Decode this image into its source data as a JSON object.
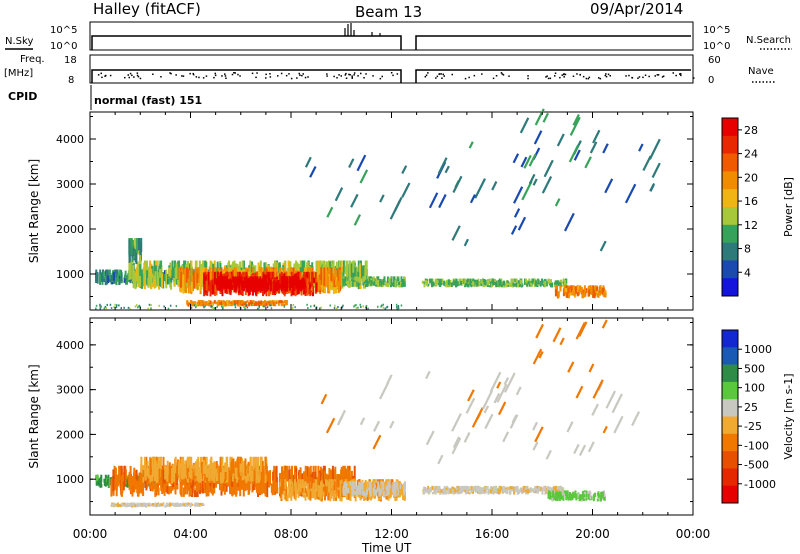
{
  "header": {
    "station": "Halley (fitACF)",
    "beam": "Beam 13",
    "date": "09/Apr/2014"
  },
  "summary_panels": {
    "nsky": {
      "label": "N.Sky",
      "tick_top": "10^5",
      "tick_bottom": "10^0"
    },
    "nsearch": {
      "label": "N.Search",
      "tick_top": "10^5",
      "tick_bottom": "10^0"
    },
    "freq": {
      "label": "Freq.",
      "unit": "[MHz]",
      "tick_top": "18",
      "tick_bottom": "8"
    },
    "nave": {
      "label": "Nave",
      "tick_top": "60",
      "tick_bottom": "0"
    },
    "cpid": {
      "label": "CPID",
      "value": "normal (fast) 151"
    }
  },
  "colors": {
    "power": [
      "#1414dc",
      "#1a4ab0",
      "#2e7a7a",
      "#37a35a",
      "#a8c83c",
      "#f0b414",
      "#f08c00",
      "#f05a00",
      "#e82800",
      "#e60000"
    ],
    "velocity": [
      "#1428d2",
      "#1a5ab4",
      "#2e8c46",
      "#5ac83c",
      "#c8c8c0",
      "#f0aa32",
      "#f07800",
      "#e65000",
      "#e62800",
      "#e60000"
    ]
  },
  "chart_data": [
    {
      "type": "heatmap",
      "name": "Power",
      "ylabel": "Slant Range [km]",
      "y_ticks": [
        "1000",
        "2000",
        "3000",
        "4000"
      ],
      "colorbar_label": "Power [dB]",
      "colorbar_ticks": [
        "4",
        "8",
        "12",
        "16",
        "20",
        "24",
        "28"
      ],
      "clim": [
        0,
        30
      ],
      "ylim": [
        200,
        4600
      ],
      "xlim_hours": [
        0,
        24
      ],
      "blobs": [
        {
          "x0": 0.2,
          "x1": 6.5,
          "y0": 750,
          "y1": 1100,
          "v": 8
        },
        {
          "x0": 1.5,
          "x1": 11.0,
          "y0": 650,
          "y1": 1300,
          "v": 13
        },
        {
          "x0": 3.5,
          "x1": 10.0,
          "y0": 550,
          "y1": 1150,
          "v": 19
        },
        {
          "x0": 4.5,
          "x1": 9.0,
          "y0": 500,
          "y1": 1050,
          "v": 26
        },
        {
          "x0": 5.0,
          "x1": 8.5,
          "y0": 600,
          "y1": 950,
          "v": 30
        },
        {
          "x0": 3.8,
          "x1": 7.8,
          "y0": 280,
          "y1": 420,
          "v": 20
        },
        {
          "x0": 10.0,
          "x1": 12.5,
          "y0": 700,
          "y1": 950,
          "v": 12
        },
        {
          "x0": 13.0,
          "x1": 19.0,
          "y0": 700,
          "y1": 900,
          "v": 12
        },
        {
          "x0": 18.5,
          "x1": 20.5,
          "y0": 450,
          "y1": 750,
          "v": 20
        },
        {
          "x0": 1.5,
          "x1": 2.0,
          "y0": 1200,
          "y1": 1800,
          "v": 10
        }
      ],
      "streaks": [
        {
          "x0": 13.5,
          "x1": 22.5,
          "y0": 1500,
          "y1": 3800,
          "n": 38,
          "v": 4
        },
        {
          "x0": 17.0,
          "x1": 20.5,
          "y0": 2800,
          "y1": 4400,
          "n": 14,
          "v": 5
        },
        {
          "x0": 8.5,
          "x1": 12.5,
          "y0": 1800,
          "y1": 3400,
          "n": 14,
          "v": 4
        }
      ],
      "noise": {
        "x0": 0.2,
        "x1": 12.5,
        "y0": 250,
        "y1": 340,
        "v": 6
      }
    },
    {
      "type": "heatmap",
      "name": "Velocity",
      "ylabel": "Slant Range [km]",
      "y_ticks": [
        "1000",
        "2000",
        "3000",
        "4000"
      ],
      "xlabel": "Time UT",
      "x_ticks": [
        "00:00",
        "04:00",
        "08:00",
        "12:00",
        "16:00",
        "20:00",
        "00:00"
      ],
      "colorbar_label": "Velocity [m s-1]",
      "colorbar_ticks": [
        "1000",
        "500",
        "100",
        "25",
        "-25",
        "-100",
        "-500",
        "-1000"
      ],
      "ylim": [
        200,
        4600
      ],
      "xlim_hours": [
        0,
        24
      ],
      "blobs": [
        {
          "x0": 0.2,
          "x1": 3.0,
          "y0": 800,
          "y1": 1100,
          "c": 2
        },
        {
          "x0": 0.8,
          "x1": 10.5,
          "y0": 600,
          "y1": 1300,
          "c": 6
        },
        {
          "x0": 2.0,
          "x1": 7.0,
          "y0": 900,
          "y1": 1500,
          "c": 5
        },
        {
          "x0": 7.5,
          "x1": 12.5,
          "y0": 500,
          "y1": 1000,
          "c": 5
        },
        {
          "x0": 10.0,
          "x1": 12.5,
          "y0": 600,
          "y1": 950,
          "c": 4
        },
        {
          "x0": 13.0,
          "x1": 18.8,
          "y0": 650,
          "y1": 850,
          "c": 4
        },
        {
          "x0": 18.2,
          "x1": 20.5,
          "y0": 500,
          "y1": 750,
          "c": 3
        },
        {
          "x0": 0.8,
          "x1": 4.5,
          "y0": 380,
          "y1": 480,
          "c": 4
        }
      ],
      "streaks": [
        {
          "x0": 13.0,
          "x1": 22.5,
          "y0": 1300,
          "y1": 3300,
          "n": 40,
          "c": 4
        },
        {
          "x0": 17.5,
          "x1": 20.5,
          "y0": 2600,
          "y1": 4400,
          "n": 12,
          "c": 6
        },
        {
          "x0": 8.5,
          "x1": 12.0,
          "y0": 1500,
          "y1": 3200,
          "n": 10,
          "c": 4
        }
      ]
    }
  ]
}
